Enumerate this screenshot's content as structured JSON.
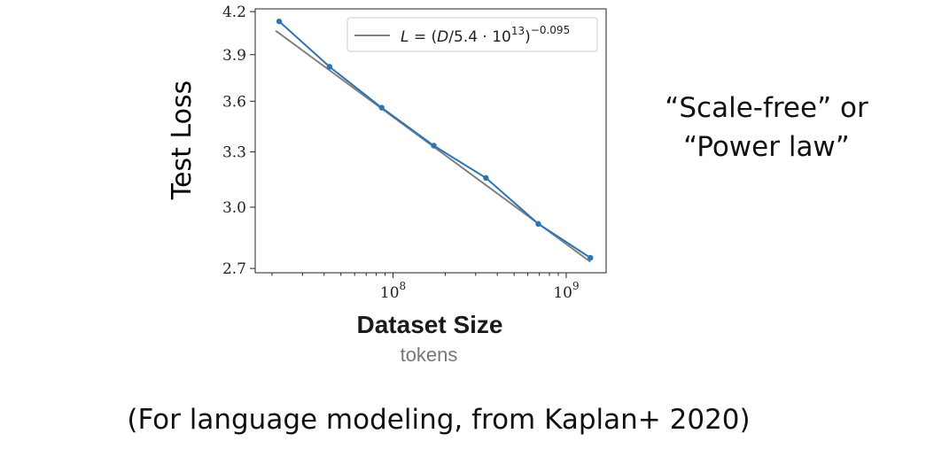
{
  "chart_data": {
    "type": "line",
    "x_scale": "log",
    "y_scale": "log",
    "xlabel": "Dataset Size",
    "xlabel_sub": "tokens",
    "ylabel": "Test Loss",
    "xlim": [
      16000000.0,
      1700000000.0
    ],
    "ylim": [
      2.68,
      4.22
    ],
    "x_ticks": [
      {
        "value": 100000000.0,
        "base": "10",
        "exp": "8"
      },
      {
        "value": 1000000000.0,
        "base": "10",
        "exp": "9"
      }
    ],
    "y_ticks": [
      {
        "value": 2.7,
        "label": "2.7"
      },
      {
        "value": 3.0,
        "label": "3.0"
      },
      {
        "value": 3.3,
        "label": "3.3"
      },
      {
        "value": 3.6,
        "label": "3.6"
      },
      {
        "value": 3.9,
        "label": "3.9"
      },
      {
        "value": 4.2,
        "label": "4.2"
      }
    ],
    "series": [
      {
        "color": "#2d74b5",
        "points": [
          {
            "x": 22000000.0,
            "y": 4.13
          },
          {
            "x": 43000000.0,
            "y": 3.82
          },
          {
            "x": 86000000.0,
            "y": 3.56
          },
          {
            "x": 172000000.0,
            "y": 3.335
          },
          {
            "x": 344000000.0,
            "y": 3.155
          },
          {
            "x": 690000000.0,
            "y": 2.915
          },
          {
            "x": 1380000000.0,
            "y": 2.75
          }
        ]
      }
    ],
    "fit": {
      "legend": "L = (D/5.4 · 10^13)^−0.095",
      "legend_parts": {
        "lhs": "L",
        "eq": " = (",
        "d": "D",
        "mid": "/5.4 · 10",
        "exp_inner": "13",
        "close": ")",
        "exp_outer": "−0.095"
      },
      "scale": 54000000000000.0,
      "exponent": -0.095,
      "color": "#808080",
      "x_range": [
        21000000.0,
        1380000000.0
      ]
    },
    "legend_position": "top-right",
    "grid": false
  },
  "side_note": {
    "line1": "“Scale-free” or",
    "line2": "“Power law”"
  },
  "caption": "(For language modeling, from Kaplan+ 2020)"
}
